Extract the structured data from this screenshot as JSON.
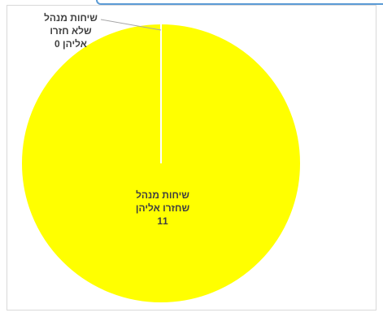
{
  "chart_data": {
    "type": "pie",
    "slices": [
      {
        "label": "שיחות מנהל שחזרו אליהן",
        "label_lines": [
          "שיחות מנהל",
          "שחזרו אליהן"
        ],
        "value": 11,
        "value_label": "11",
        "color": "#ffff00"
      },
      {
        "label": "שיחות מנהל שלא חזרו אליהן",
        "label_lines": [
          "שיחות מנהל",
          "שלא חזרו",
          "אליהן"
        ],
        "value": 0,
        "value_label": "0",
        "color": "#ffff00"
      }
    ],
    "title": "",
    "legend": "none",
    "slice_border_color": "#ffffff"
  },
  "frame": {
    "accent_color": "#5b9bd5",
    "border_color": "#d9d9d9"
  }
}
